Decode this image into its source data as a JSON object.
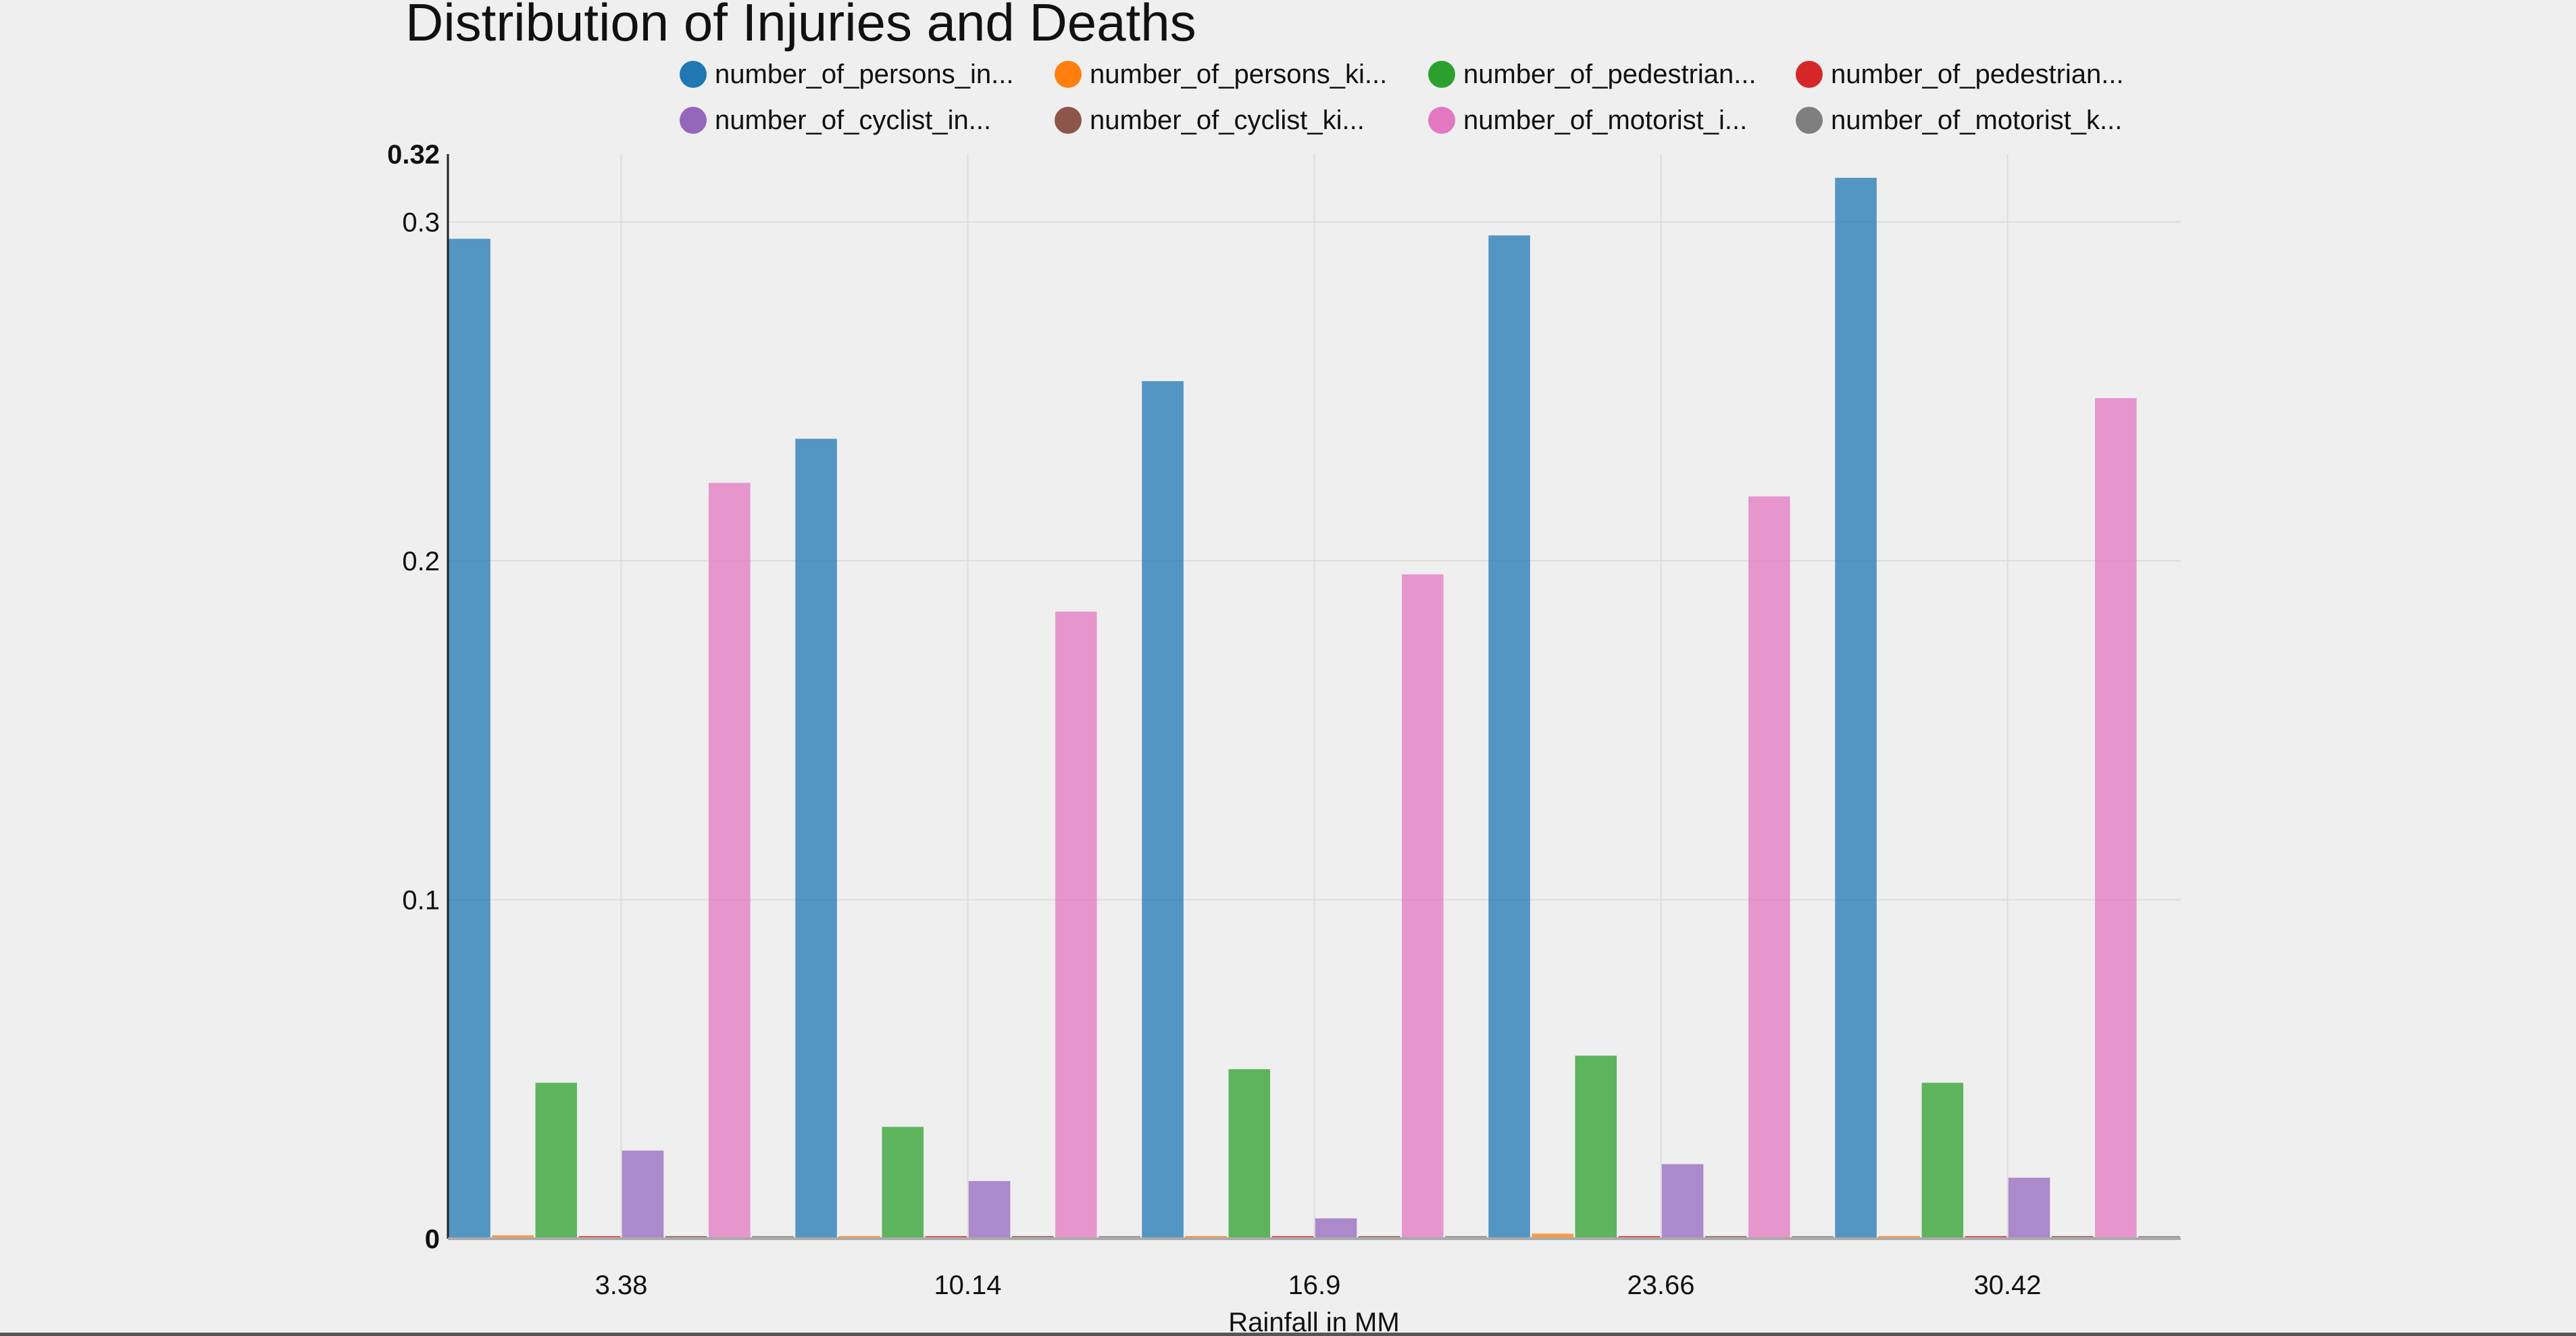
{
  "chart_data": {
    "type": "bar",
    "title": "Distribution of Injuries and Deaths",
    "xlabel": "Rainfall in MM",
    "ylabel": "",
    "categories": [
      "3.38",
      "10.14",
      "16.9",
      "23.66",
      "30.42"
    ],
    "ylim": [
      0,
      0.32
    ],
    "y_ticks": [
      {
        "value": 0,
        "label": "0",
        "bold": true
      },
      {
        "value": 0.1,
        "label": "0.1",
        "bold": false
      },
      {
        "value": 0.2,
        "label": "0.2",
        "bold": false
      },
      {
        "value": 0.3,
        "label": "0.3",
        "bold": false
      },
      {
        "value": 0.32,
        "label": "0.32",
        "bold": true
      }
    ],
    "grid": true,
    "legend_position": "top",
    "series": [
      {
        "name": "number_of_persons_in...",
        "color": "#1f77b4",
        "values": [
          0.295,
          0.236,
          0.253,
          0.296,
          0.313
        ]
      },
      {
        "name": "number_of_persons_ki...",
        "color": "#ff7f0e",
        "values": [
          0.001,
          0.0005,
          0.0005,
          0.0015,
          0.0007
        ]
      },
      {
        "name": "number_of_pedestrian...",
        "color": "#2ca02c",
        "values": [
          0.046,
          0.033,
          0.05,
          0.054,
          0.046
        ]
      },
      {
        "name": "number_of_pedestrian...",
        "color": "#d62728",
        "values": [
          0.0006,
          0.0005,
          0.0004,
          0.0008,
          0.0005
        ]
      },
      {
        "name": "number_of_cyclist_in...",
        "color": "#9467bd",
        "values": [
          0.026,
          0.017,
          0.006,
          0.022,
          0.018
        ]
      },
      {
        "name": "number_of_cyclist_ki...",
        "color": "#8c564b",
        "values": [
          0.0002,
          0.0001,
          0.0001,
          0.0002,
          0.0002
        ]
      },
      {
        "name": "number_of_motorist_i...",
        "color": "#e377c2",
        "values": [
          0.223,
          0.185,
          0.196,
          0.219,
          0.248
        ]
      },
      {
        "name": "number_of_motorist_k...",
        "color": "#7f7f7f",
        "values": [
          0.0004,
          0.0003,
          0.0004,
          0.0005,
          0.0005
        ]
      }
    ]
  }
}
